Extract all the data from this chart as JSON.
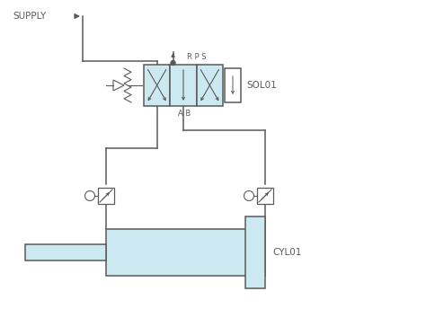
{
  "bg_color": "#ffffff",
  "line_color": "#5a5a5a",
  "fill_color": "#cce8f0",
  "figsize": [
    4.74,
    3.44
  ],
  "dpi": 100,
  "supply_label": "SUPPLY",
  "sol_label": "SOL01",
  "cyl_label": "CYL01",
  "rps_label": "R P S",
  "ab_label": "A B",
  "xlim": [
    0,
    474
  ],
  "ylim": [
    0,
    344
  ]
}
